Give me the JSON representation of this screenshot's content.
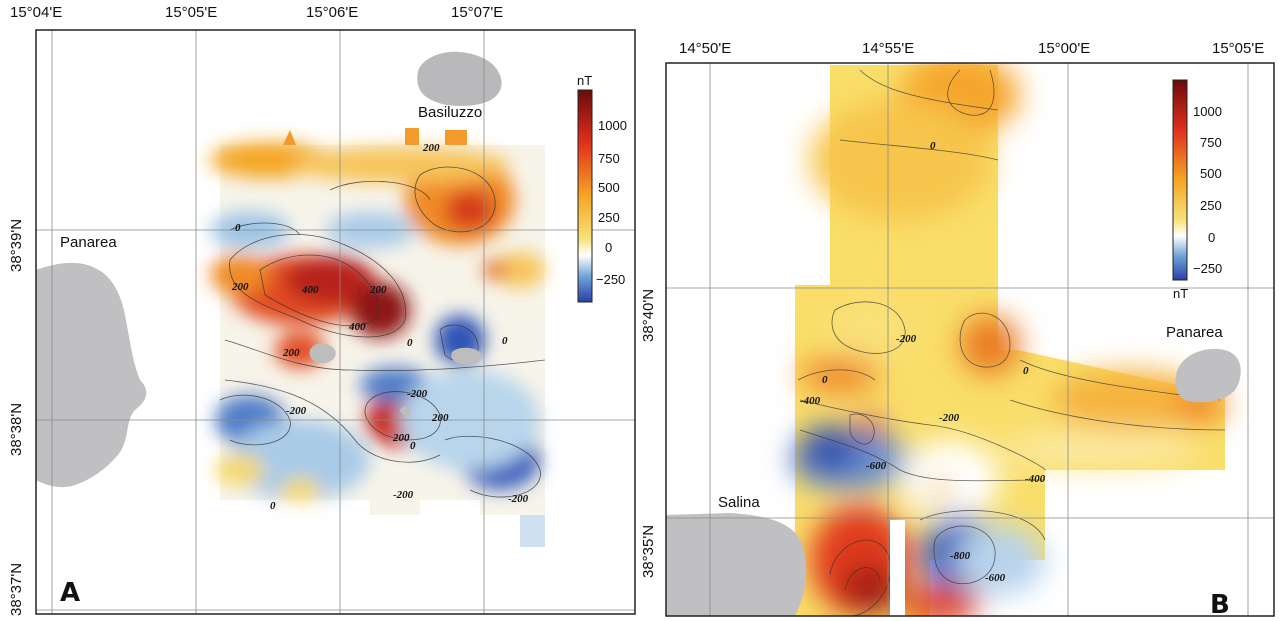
{
  "panel_a": {
    "letter": "A",
    "lon_labels": [
      "15°04'E",
      "15°05'E",
      "15°06'E",
      "15°07'E"
    ],
    "lat_labels": [
      "38°39'N",
      "38°38'N",
      "38°37'N"
    ],
    "places": {
      "panarea": "Panarea",
      "basiluzzo": "Basiluzzo"
    },
    "colorbar": {
      "unit": "nT",
      "ticks": [
        "1000",
        "750",
        "500",
        "250",
        "0",
        "−250"
      ]
    },
    "contour_labels": [
      "200",
      "0",
      "400",
      "200",
      "400",
      "200",
      "200",
      "0",
      "0",
      "-200",
      "200",
      "-200",
      "200",
      "0",
      "-200",
      "0",
      "-200"
    ]
  },
  "panel_b": {
    "letter": "B",
    "lon_labels": [
      "14°50'E",
      "14°55'E",
      "15°00'E",
      "15°05'E"
    ],
    "lat_labels": [
      "38°40'N",
      "38°35'N"
    ],
    "places": {
      "panarea": "Panarea",
      "salina": "Salina"
    },
    "colorbar": {
      "unit": "nT",
      "ticks": [
        "1000",
        "750",
        "500",
        "250",
        "0",
        "−250"
      ]
    },
    "contour_labels": [
      "0",
      "-200",
      "0",
      "0",
      "-200",
      "-400",
      "-600",
      "-400",
      "-800",
      "-600"
    ]
  },
  "colors": {
    "land": "#c0c0c2",
    "grid": "#8a8a8a",
    "colormap": [
      "#2a3fa8",
      "#6ea4d6",
      "#ffffff",
      "#f6e27a",
      "#f5a623",
      "#e0301e",
      "#6b0a0a"
    ]
  }
}
